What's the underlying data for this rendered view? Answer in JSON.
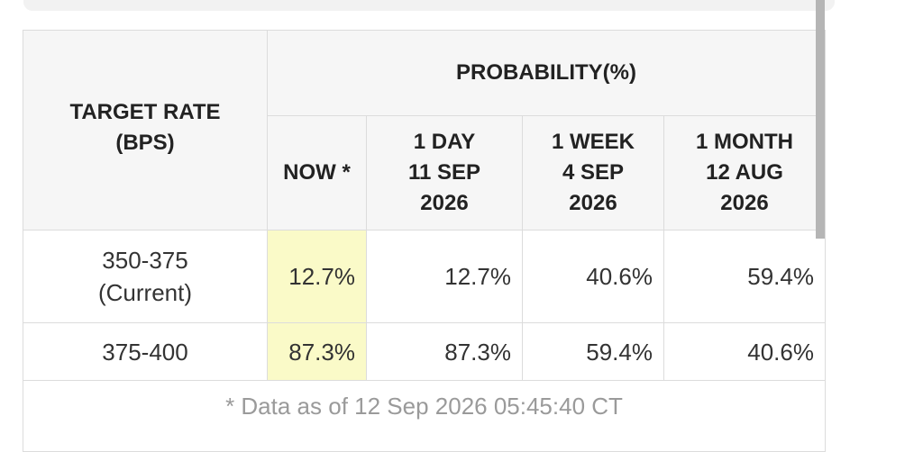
{
  "table": {
    "row_header": [
      "TARGET RATE",
      "(BPS)"
    ],
    "group_header": "PROBABILITY(%)",
    "columns": [
      [
        "NOW *"
      ],
      [
        "1 DAY",
        "11 SEP",
        "2026"
      ],
      [
        "1 WEEK",
        "4 SEP",
        "2026"
      ],
      [
        "1 MONTH",
        "12 AUG",
        "2026"
      ]
    ],
    "rows": [
      {
        "target": [
          "350-375",
          "(Current)"
        ],
        "cells": [
          "12.7%",
          "12.7%",
          "40.6%",
          "59.4%"
        ]
      },
      {
        "target": [
          "375-400"
        ],
        "cells": [
          "87.3%",
          "87.3%",
          "59.4%",
          "40.6%"
        ]
      }
    ],
    "footer": "* Data as of 12 Sep 2026 05:45:40 CT"
  }
}
